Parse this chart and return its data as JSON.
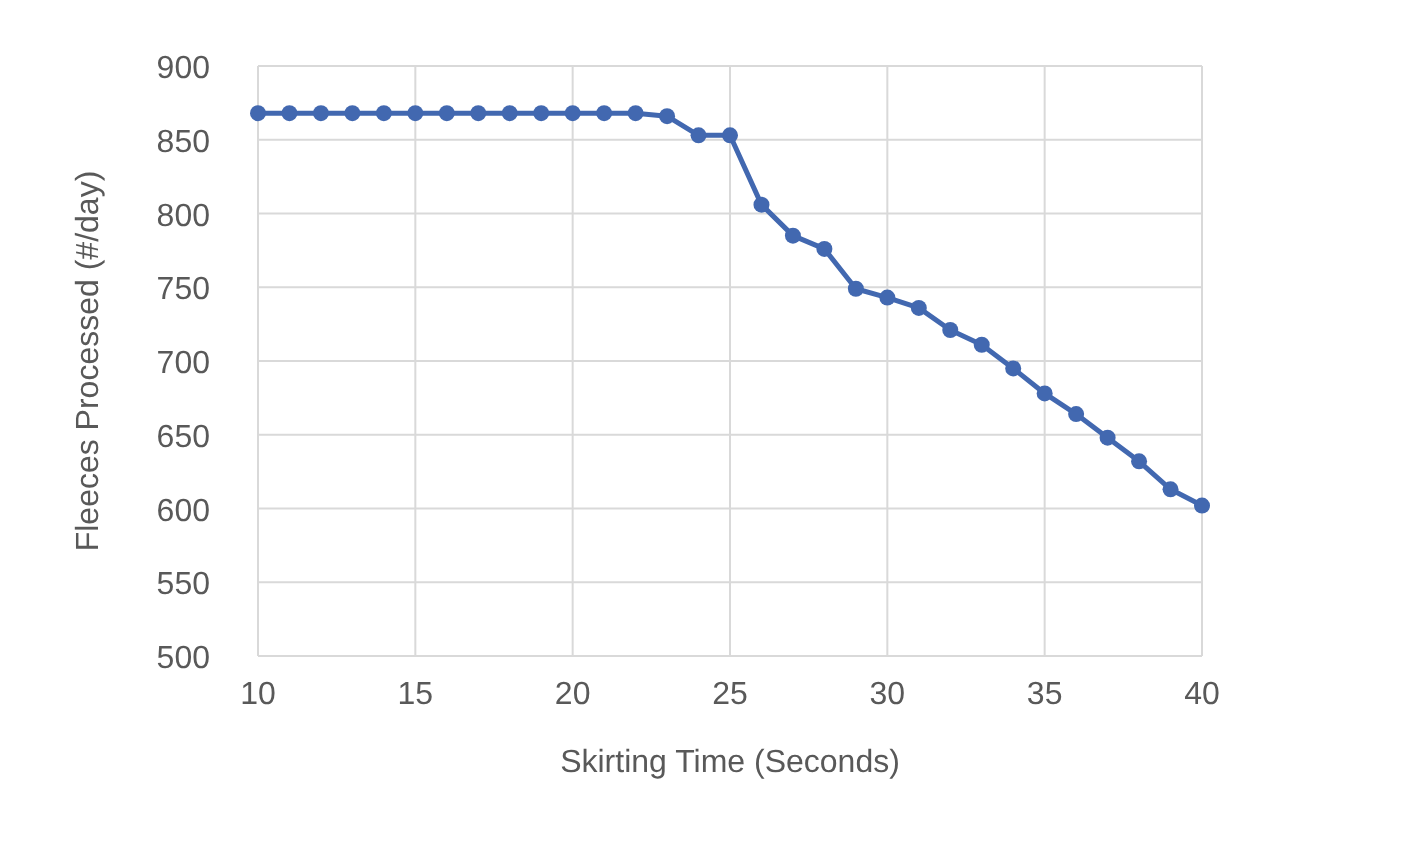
{
  "chart_data": {
    "type": "line",
    "xlabel": "Skirting Time (Seconds)",
    "ylabel": "Fleeces Processed (#/day)",
    "x": [
      10,
      11,
      12,
      13,
      14,
      15,
      16,
      17,
      18,
      19,
      20,
      21,
      22,
      23,
      24,
      25,
      26,
      27,
      28,
      29,
      30,
      31,
      32,
      33,
      34,
      35,
      36,
      37,
      38,
      39,
      40
    ],
    "series": [
      {
        "color": "#4268b0",
        "values": [
          868,
          868,
          868,
          868,
          868,
          868,
          868,
          868,
          868,
          868,
          868,
          868,
          868,
          866,
          853,
          853,
          806,
          785,
          776,
          749,
          743,
          736,
          721,
          711,
          695,
          678,
          664,
          648,
          632,
          613,
          602
        ]
      }
    ],
    "xlim": [
      10,
      40
    ],
    "xticks": [
      10,
      15,
      20,
      25,
      30,
      35,
      40
    ],
    "ylim": [
      500,
      900
    ],
    "yticks": [
      500,
      550,
      600,
      650,
      700,
      750,
      800,
      850,
      900
    ],
    "grid": true,
    "marker": "circle",
    "line_style": "solid"
  }
}
